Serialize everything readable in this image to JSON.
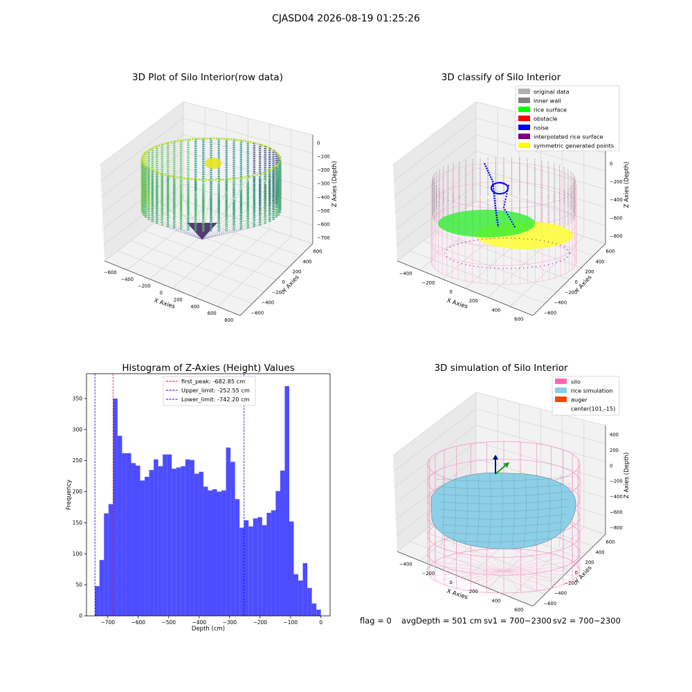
{
  "figure": {
    "suptitle": "CJASD04 2026-08-19 01:25:26",
    "footer": {
      "flag": "flag = 0",
      "avg_depth": "avgDepth = 501 cm",
      "sv1": "sv1 = 700~2300",
      "sv2": "sv2 = 700~2300"
    }
  },
  "chart_data": [
    {
      "type": "scatter",
      "projection": "3d",
      "title": "3D Plot of Silo Interior(row data)",
      "xlabel": "X Axies",
      "ylabel": "Y Axies",
      "zlabel": "Z Axies (Depth)",
      "x_ticks": [
        "−600",
        "−400",
        "−200",
        "0",
        "200",
        "400",
        "600",
        "800"
      ],
      "y_ticks": [
        "−600",
        "−400",
        "−200",
        "0",
        "200",
        "400",
        "600"
      ],
      "z_ticks": [
        "0",
        "−100",
        "−200",
        "−300",
        "−400",
        "−500",
        "−600",
        "−700"
      ],
      "colormap": "viridis",
      "description_values": {
        "z_min": -742,
        "z_max": 0
      }
    },
    {
      "type": "scatter",
      "projection": "3d",
      "title": "3D classify of Silo Interior",
      "xlabel": "X Axies",
      "ylabel": "Y Axies",
      "zlabel": "Z Axies (Depth)",
      "x_ticks": [
        "−400",
        "−200",
        "0",
        "200",
        "400",
        "600"
      ],
      "y_ticks": [
        "−600",
        "−400",
        "−200",
        "0",
        "200",
        "400",
        "600"
      ],
      "z_ticks": [
        "200",
        "0",
        "−200",
        "−400",
        "−600",
        "−800"
      ],
      "legend_position": "top-right",
      "legend": [
        {
          "label": "original data",
          "color": "#b0b0b0"
        },
        {
          "label": "inner wall",
          "color": "#808080"
        },
        {
          "label": "rice surface",
          "color": "#00ff00"
        },
        {
          "label": "obstacle",
          "color": "#ff0000"
        },
        {
          "label": "noise",
          "color": "#0000ff"
        },
        {
          "label": "interpolated rice surface",
          "color": "#800080"
        },
        {
          "label": "symmetric generated points",
          "color": "#ffff00"
        }
      ]
    },
    {
      "type": "bar",
      "title": "Histogram of Z-Axies (Height) Values",
      "xlabel": "Depth (cm)",
      "ylabel": "Frequency",
      "bar_color": "#4d4dff",
      "xlim": [
        -770,
        30
      ],
      "ylim": [
        0,
        390
      ],
      "x_ticks": [
        -700,
        -600,
        -500,
        -400,
        -300,
        -200,
        -100,
        0
      ],
      "x_tick_labels": [
        "−700",
        "−600",
        "−500",
        "−400",
        "−300",
        "−200",
        "−100",
        "0"
      ],
      "y_ticks": [
        0,
        50,
        100,
        150,
        200,
        250,
        300,
        350
      ],
      "y_tick_labels": [
        "0",
        "50",
        "100",
        "150",
        "200",
        "250",
        "300",
        "350"
      ],
      "bin_start": -742.2,
      "bin_width": 14.84,
      "values": [
        48,
        90,
        165,
        180,
        350,
        290,
        262,
        262,
        246,
        242,
        218,
        224,
        235,
        252,
        241,
        260,
        260,
        237,
        239,
        241,
        252,
        251,
        229,
        232,
        208,
        202,
        204,
        200,
        202,
        271,
        248,
        188,
        142,
        154,
        144,
        157,
        159,
        146,
        166,
        170,
        201,
        234,
        370,
        152,
        67,
        57,
        85,
        45,
        20,
        10
      ],
      "vlines": [
        {
          "label": "first_peak: -682.85 cm",
          "x": -682.85,
          "color": "#ff0000"
        },
        {
          "label": "Upper_limit: -252.55 cm",
          "x": -252.55,
          "color": "#0000ff"
        },
        {
          "label": "Lower_limit: -742.20 cm",
          "x": -742.2,
          "color": "#0000ff"
        }
      ],
      "legend_position": "top-center"
    },
    {
      "type": "surface",
      "projection": "3d",
      "title": "3D simulation of Silo Interior",
      "xlabel": "X Axies",
      "ylabel": "Y Axies",
      "zlabel": "Z Axies (Depth)",
      "x_ticks": [
        "−400",
        "−200",
        "0",
        "200",
        "400",
        "600"
      ],
      "y_ticks": [
        "−600",
        "−400",
        "−200",
        "0",
        "200",
        "400",
        "600"
      ],
      "z_ticks": [
        "400",
        "200",
        "0",
        "−200",
        "−400",
        "−600",
        "−800"
      ],
      "legend_position": "top-right",
      "legend": [
        {
          "label": "silo",
          "color": "#ff69b4"
        },
        {
          "label": "rice simulation",
          "color": "#87ceeb"
        },
        {
          "label": "auger",
          "color": "#ff4500"
        },
        {
          "label": "center(101,-15)",
          "color": "none"
        }
      ]
    }
  ]
}
